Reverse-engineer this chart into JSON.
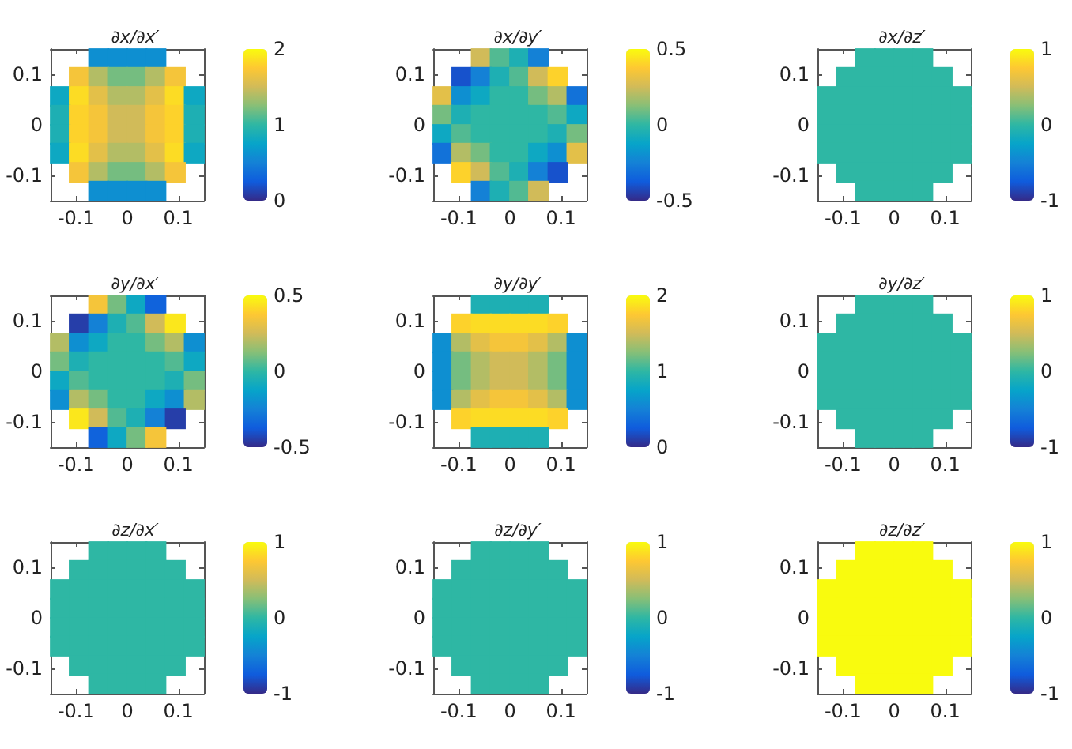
{
  "chart_data": [
    {
      "type": "scatter",
      "title": "∂x/∂x′",
      "marker": "square",
      "xlim": [
        -0.15,
        0.15
      ],
      "ylim": [
        -0.15,
        0.15
      ],
      "xticks": [
        -0.1,
        0,
        0.1
      ],
      "yticks": [
        -0.1,
        0,
        0.1
      ],
      "clim": [
        0,
        2
      ],
      "cticks": [
        0,
        1,
        2
      ],
      "x": [
        -0.056,
        -0.019,
        0.019,
        0.056,
        -0.094,
        -0.056,
        -0.019,
        0.019,
        0.056,
        0.094,
        -0.131,
        -0.094,
        -0.056,
        -0.019,
        0.019,
        0.056,
        0.094,
        0.131,
        -0.131,
        -0.094,
        -0.056,
        -0.019,
        0.019,
        0.056,
        0.094,
        0.131,
        -0.131,
        -0.094,
        -0.056,
        -0.019,
        0.019,
        0.056,
        0.094,
        0.131,
        -0.131,
        -0.094,
        -0.056,
        -0.019,
        0.019,
        0.056,
        0.094,
        0.131,
        -0.094,
        -0.056,
        -0.019,
        0.019,
        0.056,
        0.094,
        -0.056,
        -0.019,
        0.019,
        0.056
      ],
      "values": [
        0.131,
        0.131,
        0.131,
        0.131,
        0.094,
        0.094,
        0.094,
        0.094,
        0.094,
        0.094,
        0.056,
        0.056,
        0.056,
        0.056,
        0.056,
        0.056,
        0.056,
        0.056,
        0.019,
        0.019,
        0.019,
        0.019,
        0.019,
        0.019,
        0.019,
        0.019,
        -0.019,
        -0.019,
        -0.019,
        -0.019,
        -0.019,
        -0.019,
        -0.019,
        -0.019,
        -0.056,
        -0.056,
        -0.056,
        -0.056,
        -0.056,
        -0.056,
        -0.056,
        -0.056,
        -0.094,
        -0.094,
        -0.094,
        -0.094,
        -0.094,
        -0.094,
        -0.131,
        -0.131,
        -0.131,
        -0.131
      ],
      "cvalues": [
        0.6,
        0.6,
        0.6,
        0.6,
        1.7,
        1.4,
        1.2,
        1.2,
        1.4,
        1.7,
        0.8,
        1.85,
        1.6,
        1.4,
        1.4,
        1.6,
        1.85,
        0.8,
        0.9,
        1.8,
        1.7,
        1.5,
        1.5,
        1.7,
        1.8,
        0.9,
        0.9,
        1.8,
        1.7,
        1.5,
        1.5,
        1.7,
        1.8,
        0.9,
        0.8,
        1.85,
        1.6,
        1.4,
        1.4,
        1.6,
        1.85,
        0.8,
        1.7,
        1.4,
        1.2,
        1.2,
        1.4,
        1.7,
        0.6,
        0.6,
        0.6,
        0.6
      ]
    },
    {
      "type": "scatter",
      "title": "∂x/∂y′",
      "marker": "square",
      "xlim": [
        -0.15,
        0.15
      ],
      "ylim": [
        -0.15,
        0.15
      ],
      "xticks": [
        -0.1,
        0,
        0.1
      ],
      "yticks": [
        -0.1,
        0,
        0.1
      ],
      "clim": [
        -0.5,
        0.5
      ],
      "cticks": [
        -0.5,
        0,
        0.5
      ],
      "x": [
        -0.056,
        -0.019,
        0.019,
        0.056,
        -0.094,
        -0.056,
        -0.019,
        0.019,
        0.056,
        0.094,
        -0.131,
        -0.094,
        -0.056,
        -0.019,
        0.019,
        0.056,
        0.094,
        0.131,
        -0.131,
        -0.094,
        -0.056,
        -0.019,
        0.019,
        0.056,
        0.094,
        0.131,
        -0.131,
        -0.094,
        -0.056,
        -0.019,
        0.019,
        0.056,
        0.094,
        0.131,
        -0.131,
        -0.094,
        -0.056,
        -0.019,
        0.019,
        0.056,
        0.094,
        0.131,
        -0.094,
        -0.056,
        -0.019,
        0.019,
        0.056,
        0.094,
        -0.056,
        -0.019,
        0.019,
        0.056
      ],
      "values": [
        0.131,
        0.131,
        0.131,
        0.131,
        0.094,
        0.094,
        0.094,
        0.094,
        0.094,
        0.094,
        0.056,
        0.056,
        0.056,
        0.056,
        0.056,
        0.056,
        0.056,
        0.056,
        0.019,
        0.019,
        0.019,
        0.019,
        0.019,
        0.019,
        0.019,
        0.019,
        -0.019,
        -0.019,
        -0.019,
        -0.019,
        -0.019,
        -0.019,
        -0.019,
        -0.019,
        -0.056,
        -0.056,
        -0.056,
        -0.056,
        -0.056,
        -0.056,
        -0.056,
        -0.056,
        -0.094,
        -0.094,
        -0.094,
        -0.094,
        -0.094,
        -0.094,
        -0.131,
        -0.131,
        -0.131,
        -0.131
      ],
      "cvalues": [
        0.25,
        0.05,
        -0.05,
        -0.25,
        -0.4,
        -0.25,
        -0.05,
        0.05,
        0.25,
        0.4,
        0.3,
        -0.2,
        -0.1,
        0,
        0,
        0.1,
        0.2,
        -0.3,
        0.1,
        -0.05,
        0,
        0,
        0,
        0,
        0.05,
        -0.1,
        -0.1,
        0.05,
        0,
        0,
        0,
        0,
        -0.05,
        0.1,
        -0.3,
        0.2,
        0.1,
        0,
        0,
        -0.1,
        -0.2,
        0.3,
        0.4,
        0.25,
        0.05,
        -0.05,
        -0.25,
        -0.4,
        -0.25,
        -0.05,
        0.05,
        0.25
      ]
    },
    {
      "type": "scatter",
      "title": "∂x/∂z′",
      "marker": "square",
      "xlim": [
        -0.15,
        0.15
      ],
      "ylim": [
        -0.15,
        0.15
      ],
      "xticks": [
        -0.1,
        0,
        0.1
      ],
      "yticks": [
        -0.1,
        0,
        0.1
      ],
      "clim": [
        -1,
        1
      ],
      "cticks": [
        -1,
        0,
        1
      ],
      "x": [
        -0.056,
        -0.019,
        0.019,
        0.056,
        -0.094,
        -0.056,
        -0.019,
        0.019,
        0.056,
        0.094,
        -0.131,
        -0.094,
        -0.056,
        -0.019,
        0.019,
        0.056,
        0.094,
        0.131,
        -0.131,
        -0.094,
        -0.056,
        -0.019,
        0.019,
        0.056,
        0.094,
        0.131,
        -0.131,
        -0.094,
        -0.056,
        -0.019,
        0.019,
        0.056,
        0.094,
        0.131,
        -0.131,
        -0.094,
        -0.056,
        -0.019,
        0.019,
        0.056,
        0.094,
        0.131,
        -0.094,
        -0.056,
        -0.019,
        0.019,
        0.056,
        0.094,
        -0.056,
        -0.019,
        0.019,
        0.056
      ],
      "values": [
        0.131,
        0.131,
        0.131,
        0.131,
        0.094,
        0.094,
        0.094,
        0.094,
        0.094,
        0.094,
        0.056,
        0.056,
        0.056,
        0.056,
        0.056,
        0.056,
        0.056,
        0.056,
        0.019,
        0.019,
        0.019,
        0.019,
        0.019,
        0.019,
        0.019,
        0.019,
        -0.019,
        -0.019,
        -0.019,
        -0.019,
        -0.019,
        -0.019,
        -0.019,
        -0.019,
        -0.056,
        -0.056,
        -0.056,
        -0.056,
        -0.056,
        -0.056,
        -0.056,
        -0.056,
        -0.094,
        -0.094,
        -0.094,
        -0.094,
        -0.094,
        -0.094,
        -0.131,
        -0.131,
        -0.131,
        -0.131
      ],
      "cvalues": [
        0,
        0,
        0,
        0,
        0,
        0,
        0,
        0,
        0,
        0,
        0,
        0,
        0,
        0,
        0,
        0,
        0,
        0,
        0,
        0,
        0,
        0,
        0,
        0,
        0,
        0,
        0,
        0,
        0,
        0,
        0,
        0,
        0,
        0,
        0,
        0,
        0,
        0,
        0,
        0,
        0,
        0,
        0,
        0,
        0,
        0,
        0,
        0,
        0,
        0,
        0,
        0
      ]
    },
    {
      "type": "scatter",
      "title": "∂y/∂x′",
      "marker": "square",
      "xlim": [
        -0.15,
        0.15
      ],
      "ylim": [
        -0.15,
        0.15
      ],
      "xticks": [
        -0.1,
        0,
        0.1
      ],
      "yticks": [
        -0.1,
        0,
        0.1
      ],
      "clim": [
        -0.5,
        0.5
      ],
      "cticks": [
        -0.5,
        0,
        0.5
      ],
      "x": [
        -0.056,
        -0.019,
        0.019,
        0.056,
        -0.094,
        -0.056,
        -0.019,
        0.019,
        0.056,
        0.094,
        -0.131,
        -0.094,
        -0.056,
        -0.019,
        0.019,
        0.056,
        0.094,
        0.131,
        -0.131,
        -0.094,
        -0.056,
        -0.019,
        0.019,
        0.056,
        0.094,
        0.131,
        -0.131,
        -0.094,
        -0.056,
        -0.019,
        0.019,
        0.056,
        0.094,
        0.131,
        -0.131,
        -0.094,
        -0.056,
        -0.019,
        0.019,
        0.056,
        0.094,
        0.131,
        -0.094,
        -0.056,
        -0.019,
        0.019,
        0.056,
        0.094,
        -0.056,
        -0.019,
        0.019,
        0.056
      ],
      "values": [
        0.131,
        0.131,
        0.131,
        0.131,
        0.094,
        0.094,
        0.094,
        0.094,
        0.094,
        0.094,
        0.056,
        0.056,
        0.056,
        0.056,
        0.056,
        0.056,
        0.056,
        0.056,
        0.019,
        0.019,
        0.019,
        0.019,
        0.019,
        0.019,
        0.019,
        0.019,
        -0.019,
        -0.019,
        -0.019,
        -0.019,
        -0.019,
        -0.019,
        -0.019,
        -0.019,
        -0.056,
        -0.056,
        -0.056,
        -0.056,
        -0.056,
        -0.056,
        -0.056,
        -0.056,
        -0.094,
        -0.094,
        -0.094,
        -0.094,
        -0.094,
        -0.094,
        -0.131,
        -0.131,
        -0.131,
        -0.131
      ],
      "cvalues": [
        0.35,
        0.1,
        -0.1,
        -0.35,
        -0.45,
        -0.25,
        -0.05,
        0.05,
        0.25,
        0.45,
        0.2,
        -0.2,
        -0.1,
        0,
        0,
        0.1,
        0.2,
        -0.2,
        0.1,
        -0.05,
        0,
        0,
        0,
        0,
        0.05,
        -0.1,
        -0.1,
        0.05,
        0,
        0,
        0,
        0,
        -0.05,
        0.1,
        -0.2,
        0.2,
        0.1,
        0,
        0,
        -0.1,
        -0.2,
        0.2,
        0.45,
        0.25,
        0.05,
        -0.05,
        -0.25,
        -0.45,
        -0.35,
        -0.1,
        0.1,
        0.35
      ]
    },
    {
      "type": "scatter",
      "title": "∂y/∂y′",
      "marker": "square",
      "xlim": [
        -0.15,
        0.15
      ],
      "ylim": [
        -0.15,
        0.15
      ],
      "xticks": [
        -0.1,
        0,
        0.1
      ],
      "yticks": [
        -0.1,
        0,
        0.1
      ],
      "clim": [
        0,
        2
      ],
      "cticks": [
        0,
        1,
        2
      ],
      "x": [
        -0.056,
        -0.019,
        0.019,
        0.056,
        -0.094,
        -0.056,
        -0.019,
        0.019,
        0.056,
        0.094,
        -0.131,
        -0.094,
        -0.056,
        -0.019,
        0.019,
        0.056,
        0.094,
        0.131,
        -0.131,
        -0.094,
        -0.056,
        -0.019,
        0.019,
        0.056,
        0.094,
        0.131,
        -0.131,
        -0.094,
        -0.056,
        -0.019,
        0.019,
        0.056,
        0.094,
        0.131,
        -0.131,
        -0.094,
        -0.056,
        -0.019,
        0.019,
        0.056,
        0.094,
        0.131,
        -0.094,
        -0.056,
        -0.019,
        0.019,
        0.056,
        0.094,
        -0.056,
        -0.019,
        0.019,
        0.056
      ],
      "values": [
        0.131,
        0.131,
        0.131,
        0.131,
        0.094,
        0.094,
        0.094,
        0.094,
        0.094,
        0.094,
        0.056,
        0.056,
        0.056,
        0.056,
        0.056,
        0.056,
        0.056,
        0.056,
        0.019,
        0.019,
        0.019,
        0.019,
        0.019,
        0.019,
        0.019,
        0.019,
        -0.019,
        -0.019,
        -0.019,
        -0.019,
        -0.019,
        -0.019,
        -0.019,
        -0.019,
        -0.056,
        -0.056,
        -0.056,
        -0.056,
        -0.056,
        -0.056,
        -0.056,
        -0.056,
        -0.094,
        -0.094,
        -0.094,
        -0.094,
        -0.094,
        -0.094,
        -0.131,
        -0.131,
        -0.131,
        -0.131
      ],
      "cvalues": [
        0.9,
        0.9,
        0.9,
        0.9,
        1.8,
        1.85,
        1.85,
        1.85,
        1.85,
        1.8,
        0.6,
        1.4,
        1.6,
        1.7,
        1.7,
        1.6,
        1.4,
        0.6,
        0.6,
        1.2,
        1.4,
        1.5,
        1.5,
        1.4,
        1.2,
        0.6,
        0.6,
        1.2,
        1.4,
        1.5,
        1.5,
        1.4,
        1.2,
        0.6,
        0.6,
        1.4,
        1.6,
        1.7,
        1.7,
        1.6,
        1.4,
        0.6,
        1.8,
        1.85,
        1.85,
        1.85,
        1.85,
        1.8,
        0.9,
        0.9,
        0.9,
        0.9
      ]
    },
    {
      "type": "scatter",
      "title": "∂y/∂z′",
      "marker": "square",
      "xlim": [
        -0.15,
        0.15
      ],
      "ylim": [
        -0.15,
        0.15
      ],
      "xticks": [
        -0.1,
        0,
        0.1
      ],
      "yticks": [
        -0.1,
        0,
        0.1
      ],
      "clim": [
        -1,
        1
      ],
      "cticks": [
        -1,
        0,
        1
      ],
      "x": [
        -0.056,
        -0.019,
        0.019,
        0.056,
        -0.094,
        -0.056,
        -0.019,
        0.019,
        0.056,
        0.094,
        -0.131,
        -0.094,
        -0.056,
        -0.019,
        0.019,
        0.056,
        0.094,
        0.131,
        -0.131,
        -0.094,
        -0.056,
        -0.019,
        0.019,
        0.056,
        0.094,
        0.131,
        -0.131,
        -0.094,
        -0.056,
        -0.019,
        0.019,
        0.056,
        0.094,
        0.131,
        -0.131,
        -0.094,
        -0.056,
        -0.019,
        0.019,
        0.056,
        0.094,
        0.131,
        -0.094,
        -0.056,
        -0.019,
        0.019,
        0.056,
        0.094,
        -0.056,
        -0.019,
        0.019,
        0.056
      ],
      "values": [
        0.131,
        0.131,
        0.131,
        0.131,
        0.094,
        0.094,
        0.094,
        0.094,
        0.094,
        0.094,
        0.056,
        0.056,
        0.056,
        0.056,
        0.056,
        0.056,
        0.056,
        0.056,
        0.019,
        0.019,
        0.019,
        0.019,
        0.019,
        0.019,
        0.019,
        0.019,
        -0.019,
        -0.019,
        -0.019,
        -0.019,
        -0.019,
        -0.019,
        -0.019,
        -0.019,
        -0.056,
        -0.056,
        -0.056,
        -0.056,
        -0.056,
        -0.056,
        -0.056,
        -0.056,
        -0.094,
        -0.094,
        -0.094,
        -0.094,
        -0.094,
        -0.094,
        -0.131,
        -0.131,
        -0.131,
        -0.131
      ],
      "cvalues": [
        0,
        0,
        0,
        0,
        0,
        0,
        0,
        0,
        0,
        0,
        0,
        0,
        0,
        0,
        0,
        0,
        0,
        0,
        0,
        0,
        0,
        0,
        0,
        0,
        0,
        0,
        0,
        0,
        0,
        0,
        0,
        0,
        0,
        0,
        0,
        0,
        0,
        0,
        0,
        0,
        0,
        0,
        0,
        0,
        0,
        0,
        0,
        0,
        0,
        0,
        0,
        0
      ]
    },
    {
      "type": "scatter",
      "title": "∂z/∂x′",
      "marker": "square",
      "xlim": [
        -0.15,
        0.15
      ],
      "ylim": [
        -0.15,
        0.15
      ],
      "xticks": [
        -0.1,
        0,
        0.1
      ],
      "yticks": [
        -0.1,
        0,
        0.1
      ],
      "clim": [
        -1,
        1
      ],
      "cticks": [
        -1,
        0,
        1
      ],
      "x": [
        -0.056,
        -0.019,
        0.019,
        0.056,
        -0.094,
        -0.056,
        -0.019,
        0.019,
        0.056,
        0.094,
        -0.131,
        -0.094,
        -0.056,
        -0.019,
        0.019,
        0.056,
        0.094,
        0.131,
        -0.131,
        -0.094,
        -0.056,
        -0.019,
        0.019,
        0.056,
        0.094,
        0.131,
        -0.131,
        -0.094,
        -0.056,
        -0.019,
        0.019,
        0.056,
        0.094,
        0.131,
        -0.131,
        -0.094,
        -0.056,
        -0.019,
        0.019,
        0.056,
        0.094,
        0.131,
        -0.094,
        -0.056,
        -0.019,
        0.019,
        0.056,
        0.094,
        -0.056,
        -0.019,
        0.019,
        0.056
      ],
      "values": [
        0.131,
        0.131,
        0.131,
        0.131,
        0.094,
        0.094,
        0.094,
        0.094,
        0.094,
        0.094,
        0.056,
        0.056,
        0.056,
        0.056,
        0.056,
        0.056,
        0.056,
        0.056,
        0.019,
        0.019,
        0.019,
        0.019,
        0.019,
        0.019,
        0.019,
        0.019,
        -0.019,
        -0.019,
        -0.019,
        -0.019,
        -0.019,
        -0.019,
        -0.019,
        -0.019,
        -0.056,
        -0.056,
        -0.056,
        -0.056,
        -0.056,
        -0.056,
        -0.056,
        -0.056,
        -0.094,
        -0.094,
        -0.094,
        -0.094,
        -0.094,
        -0.094,
        -0.131,
        -0.131,
        -0.131,
        -0.131
      ],
      "cvalues": [
        0,
        0,
        0,
        0,
        0,
        0,
        0,
        0,
        0,
        0,
        0,
        0,
        0,
        0,
        0,
        0,
        0,
        0,
        0,
        0,
        0,
        0,
        0,
        0,
        0,
        0,
        0,
        0,
        0,
        0,
        0,
        0,
        0,
        0,
        0,
        0,
        0,
        0,
        0,
        0,
        0,
        0,
        0,
        0,
        0,
        0,
        0,
        0,
        0,
        0,
        0,
        0
      ]
    },
    {
      "type": "scatter",
      "title": "∂z/∂y′",
      "marker": "square",
      "xlim": [
        -0.15,
        0.15
      ],
      "ylim": [
        -0.15,
        0.15
      ],
      "xticks": [
        -0.1,
        0,
        0.1
      ],
      "yticks": [
        -0.1,
        0,
        0.1
      ],
      "clim": [
        -1,
        1
      ],
      "cticks": [
        -1,
        0,
        1
      ],
      "x": [
        -0.056,
        -0.019,
        0.019,
        0.056,
        -0.094,
        -0.056,
        -0.019,
        0.019,
        0.056,
        0.094,
        -0.131,
        -0.094,
        -0.056,
        -0.019,
        0.019,
        0.056,
        0.094,
        0.131,
        -0.131,
        -0.094,
        -0.056,
        -0.019,
        0.019,
        0.056,
        0.094,
        0.131,
        -0.131,
        -0.094,
        -0.056,
        -0.019,
        0.019,
        0.056,
        0.094,
        0.131,
        -0.131,
        -0.094,
        -0.056,
        -0.019,
        0.019,
        0.056,
        0.094,
        0.131,
        -0.094,
        -0.056,
        -0.019,
        0.019,
        0.056,
        0.094,
        -0.056,
        -0.019,
        0.019,
        0.056
      ],
      "values": [
        0.131,
        0.131,
        0.131,
        0.131,
        0.094,
        0.094,
        0.094,
        0.094,
        0.094,
        0.094,
        0.056,
        0.056,
        0.056,
        0.056,
        0.056,
        0.056,
        0.056,
        0.056,
        0.019,
        0.019,
        0.019,
        0.019,
        0.019,
        0.019,
        0.019,
        0.019,
        -0.019,
        -0.019,
        -0.019,
        -0.019,
        -0.019,
        -0.019,
        -0.019,
        -0.019,
        -0.056,
        -0.056,
        -0.056,
        -0.056,
        -0.056,
        -0.056,
        -0.056,
        -0.056,
        -0.094,
        -0.094,
        -0.094,
        -0.094,
        -0.094,
        -0.094,
        -0.131,
        -0.131,
        -0.131,
        -0.131
      ],
      "cvalues": [
        0,
        0,
        0,
        0,
        0,
        0,
        0,
        0,
        0,
        0,
        0,
        0,
        0,
        0,
        0,
        0,
        0,
        0,
        0,
        0,
        0,
        0,
        0,
        0,
        0,
        0,
        0,
        0,
        0,
        0,
        0,
        0,
        0,
        0,
        0,
        0,
        0,
        0,
        0,
        0,
        0,
        0,
        0,
        0,
        0,
        0,
        0,
        0,
        0,
        0,
        0,
        0
      ]
    },
    {
      "type": "scatter",
      "title": "∂z/∂z′",
      "marker": "square",
      "xlim": [
        -0.15,
        0.15
      ],
      "ylim": [
        -0.15,
        0.15
      ],
      "xticks": [
        -0.1,
        0,
        0.1
      ],
      "yticks": [
        -0.1,
        0,
        0.1
      ],
      "clim": [
        -1,
        1
      ],
      "cticks": [
        -1,
        0,
        1
      ],
      "x": [
        -0.056,
        -0.019,
        0.019,
        0.056,
        -0.094,
        -0.056,
        -0.019,
        0.019,
        0.056,
        0.094,
        -0.131,
        -0.094,
        -0.056,
        -0.019,
        0.019,
        0.056,
        0.094,
        0.131,
        -0.131,
        -0.094,
        -0.056,
        -0.019,
        0.019,
        0.056,
        0.094,
        0.131,
        -0.131,
        -0.094,
        -0.056,
        -0.019,
        0.019,
        0.056,
        0.094,
        0.131,
        -0.131,
        -0.094,
        -0.056,
        -0.019,
        0.019,
        0.056,
        0.094,
        0.131,
        -0.094,
        -0.056,
        -0.019,
        0.019,
        0.056,
        0.094,
        -0.056,
        -0.019,
        0.019,
        0.056
      ],
      "values": [
        0.131,
        0.131,
        0.131,
        0.131,
        0.094,
        0.094,
        0.094,
        0.094,
        0.094,
        0.094,
        0.056,
        0.056,
        0.056,
        0.056,
        0.056,
        0.056,
        0.056,
        0.056,
        0.019,
        0.019,
        0.019,
        0.019,
        0.019,
        0.019,
        0.019,
        0.019,
        -0.019,
        -0.019,
        -0.019,
        -0.019,
        -0.019,
        -0.019,
        -0.019,
        -0.019,
        -0.056,
        -0.056,
        -0.056,
        -0.056,
        -0.056,
        -0.056,
        -0.056,
        -0.056,
        -0.094,
        -0.094,
        -0.094,
        -0.094,
        -0.094,
        -0.094,
        -0.131,
        -0.131,
        -0.131,
        -0.131
      ],
      "cvalues": [
        1,
        1,
        1,
        1,
        1,
        1,
        1,
        1,
        1,
        1,
        1,
        1,
        1,
        1,
        1,
        1,
        1,
        1,
        1,
        1,
        1,
        1,
        1,
        1,
        1,
        1,
        1,
        1,
        1,
        1,
        1,
        1,
        1,
        1,
        1,
        1,
        1,
        1,
        1,
        1,
        1,
        1,
        1,
        1,
        1,
        1,
        1,
        1,
        1,
        1,
        1,
        1
      ]
    }
  ]
}
